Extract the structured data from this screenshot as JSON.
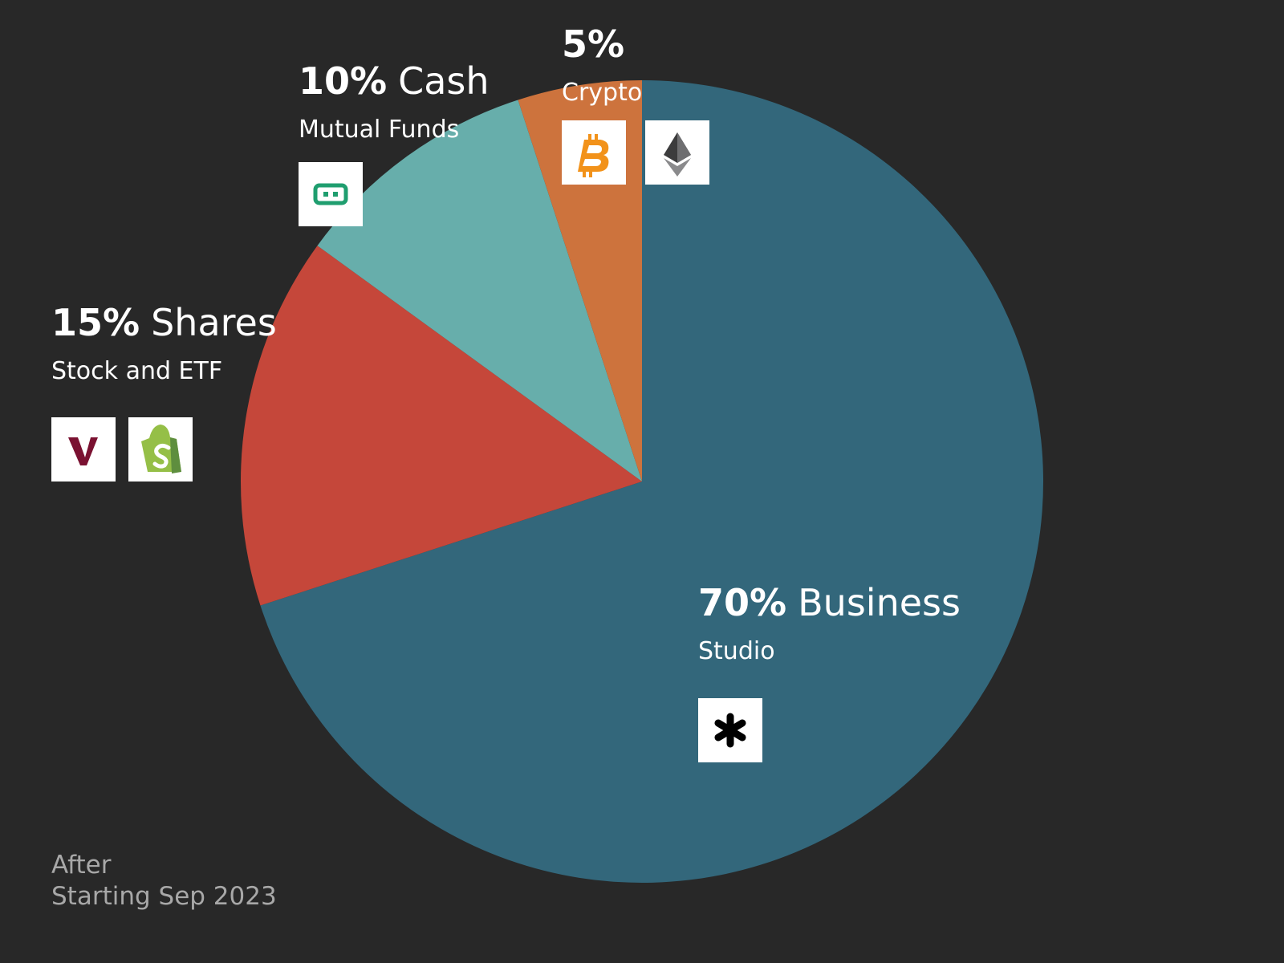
{
  "chart_data": {
    "type": "pie",
    "categories": [
      "Business",
      "Shares",
      "Cash",
      null
    ],
    "subtitles": [
      "Studio",
      "Stock and ETF",
      "Mutual Funds",
      "Crypto"
    ],
    "values": [
      70,
      15,
      10,
      5
    ],
    "value_labels": [
      "70%",
      "15%",
      "10%",
      "5%"
    ],
    "colors": [
      "#33677b",
      "#c5473a",
      "#67aeab",
      "#cd733d"
    ],
    "annotations": [
      "After",
      "Starting Sep 2023"
    ]
  }
}
